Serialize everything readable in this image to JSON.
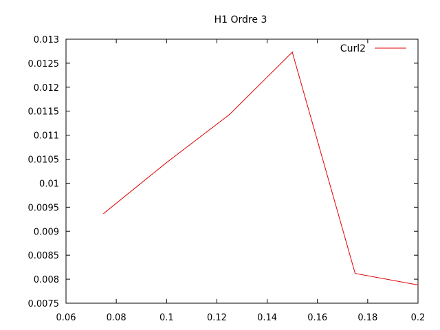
{
  "chart_data": {
    "type": "line",
    "title": "H1 Ordre 3",
    "xlabel": "",
    "ylabel": "",
    "xlim": [
      0.06,
      0.2
    ],
    "ylim": [
      0.0075,
      0.013
    ],
    "x_ticks": [
      0.06,
      0.08,
      0.1,
      0.12,
      0.14,
      0.16,
      0.18,
      0.2
    ],
    "x_tick_labels": [
      "0.06",
      "0.08",
      "0.1",
      "0.12",
      "0.14",
      "0.16",
      "0.18",
      "0.2"
    ],
    "y_ticks": [
      0.0075,
      0.008,
      0.0085,
      0.009,
      0.0095,
      0.01,
      0.0105,
      0.011,
      0.0115,
      0.012,
      0.0125,
      0.013
    ],
    "y_tick_labels": [
      "0.0075",
      "0.008",
      "0.0085",
      "0.009",
      "0.0095",
      "0.01",
      "0.0105",
      "0.011",
      "0.0115",
      "0.012",
      "0.0125",
      "0.013"
    ],
    "grid": false,
    "legend_position": "top-right",
    "series": [
      {
        "name": "Curl2",
        "color": "#e00000",
        "x": [
          0.075,
          0.1,
          0.125,
          0.15,
          0.175,
          0.2
        ],
        "y": [
          0.00937,
          0.01043,
          0.01143,
          0.01273,
          0.00812,
          0.00788
        ]
      }
    ]
  }
}
